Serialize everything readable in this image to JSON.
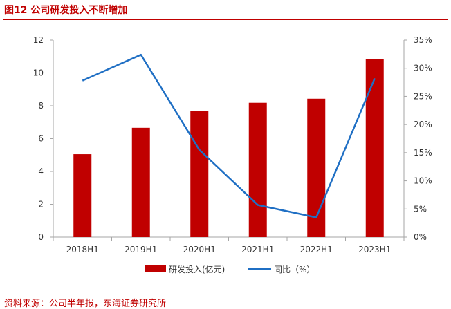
{
  "title": "图12 公司研发投入不断增加",
  "source": "资料来源：公司半年报，东海证券研究所",
  "chart_data": {
    "type": "bar+line",
    "categories": [
      "2018H1",
      "2019H1",
      "2020H1",
      "2021H1",
      "2022H1",
      "2023H1"
    ],
    "series": [
      {
        "name": "研发投入(亿元)",
        "type": "bar",
        "axis": "left",
        "color": "#c00000",
        "values": [
          5.05,
          6.66,
          7.7,
          8.18,
          8.43,
          10.85
        ]
      },
      {
        "name": "同比（%）",
        "type": "line",
        "axis": "right",
        "color": "#1f6fc4",
        "values": [
          27.8,
          32.4,
          15.5,
          5.7,
          3.5,
          28.2
        ]
      }
    ],
    "y_left": {
      "min": 0,
      "max": 12,
      "step": 2,
      "tick_labels": [
        "0",
        "2",
        "4",
        "6",
        "8",
        "10",
        "12"
      ]
    },
    "y_right": {
      "min": 0,
      "max": 35,
      "step": 5,
      "tick_labels": [
        "0%",
        "5%",
        "10%",
        "15%",
        "20%",
        "25%",
        "30%",
        "35%"
      ]
    },
    "legend_position": "bottom-center",
    "grid": false
  }
}
